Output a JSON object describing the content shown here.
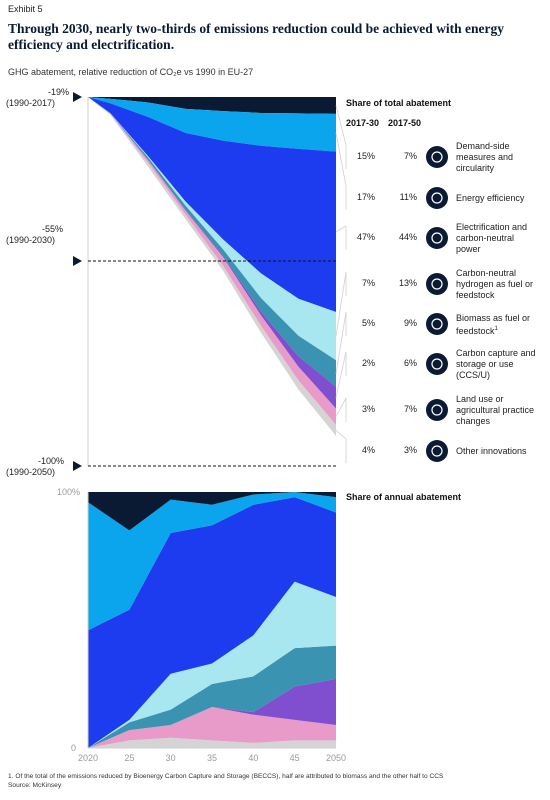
{
  "exhibit": "Exhibit 5",
  "title": "Through 2030, nearly two-thirds of emissions reduction could be achieved with energy efficiency and electrification.",
  "subtitle": "GHG abatement, relative reduction of CO₂e vs 1990 in EU-27",
  "top_labels": {
    "m19": "-19%",
    "m19_period": "(1990-2017)",
    "m55": "-55%",
    "m55_period": "(1990-2030)",
    "m100": "-100%",
    "m100_period": "(1990-2050)"
  },
  "share_total_header": "Share of total abatement",
  "col_2030": "2017-30",
  "col_2050": "2017-50",
  "share_annual_header": "Share of annual abatement",
  "levers": [
    {
      "label": "Demand-side measures and circularity",
      "share_2017_30": "15%",
      "share_2017_50": "7%",
      "icon": "circular-arrow-icon",
      "color": "#0b1a33"
    },
    {
      "label": "Energy efficiency",
      "share_2017_30": "17%",
      "share_2017_50": "11%",
      "icon": "gauge-icon",
      "color": "#0aa5ec"
    },
    {
      "label": "Electrification and carbon-neutral power",
      "share_2017_30": "47%",
      "share_2017_50": "44%",
      "icon": "wind-turbine-icon",
      "color": "#1d3cf0"
    },
    {
      "label": "Carbon-neutral hydrogen as fuel or feedstock",
      "share_2017_30": "7%",
      "share_2017_50": "13%",
      "icon": "hydrogen-icon",
      "color": "#a8e6f0"
    },
    {
      "label": "Biomass as fuel or feedstock",
      "label_sup": "1",
      "share_2017_30": "5%",
      "share_2017_50": "9%",
      "icon": "leaf-icon",
      "color": "#3a93b0"
    },
    {
      "label": "Carbon capture and storage or use (CCS/U)",
      "share_2017_30": "2%",
      "share_2017_50": "6%",
      "icon": "ccs-icon",
      "color": "#7f4fd0"
    },
    {
      "label": "Land use or agricultural practice changes",
      "share_2017_30": "3%",
      "share_2017_50": "7%",
      "icon": "tractor-icon",
      "color": "#e89ac8"
    },
    {
      "label": "Other innovations",
      "share_2017_30": "4%",
      "share_2017_50": "3%",
      "icon": "lightbulb-icon",
      "color": "#d4d4d4"
    }
  ],
  "footnote": "1. Of the total of the emissions reduced by Bioenergy Carbon Capture and Storage (BECCS), half are attributed to biomass and the other half to CCS",
  "source": "Source: McKinsey",
  "chart_data": [
    {
      "type": "area",
      "title": "GHG abatement, relative reduction of CO₂e vs 1990 in EU-27",
      "x": [
        2017,
        2020,
        2025,
        2030,
        2035,
        2040,
        2045,
        2050
      ],
      "ylim": [
        -100,
        -19
      ],
      "reference_lines": [
        -19,
        -55,
        -100
      ],
      "series": [
        {
          "name": "Demand-side measures and circularity",
          "values": [
            0,
            0.4,
            1.2,
            2.6,
            3.1,
            3.5,
            3.6,
            3.7
          ]
        },
        {
          "name": "Energy efficiency",
          "values": [
            0,
            1.0,
            3.2,
            5.3,
            6.5,
            7.2,
            7.8,
            8.3
          ]
        },
        {
          "name": "Electrification and carbon-neutral power",
          "values": [
            0,
            2.2,
            8.6,
            15.1,
            21.7,
            28.0,
            32.9,
            35.2
          ]
        },
        {
          "name": "Carbon-neutral hydrogen as fuel or feedstock",
          "values": [
            0,
            0.05,
            0.3,
            0.9,
            2.2,
            5.4,
            8.1,
            10.6
          ]
        },
        {
          "name": "Biomass as fuel or feedstock",
          "values": [
            0,
            0.05,
            0.5,
            0.9,
            1.4,
            3.0,
            4.5,
            5.8
          ]
        },
        {
          "name": "Carbon capture and storage or use (CCS/U)",
          "values": [
            0,
            0.0,
            0.1,
            0.2,
            0.3,
            0.8,
            2.3,
            4.8
          ]
        },
        {
          "name": "Land use or agricultural practice changes",
          "values": [
            0,
            0.1,
            0.6,
            0.9,
            1.9,
            2.3,
            3.0,
            3.6
          ]
        },
        {
          "name": "Other innovations",
          "values": [
            0,
            0.2,
            0.8,
            1.0,
            1.1,
            1.5,
            2.0,
            2.4
          ]
        }
      ]
    },
    {
      "type": "area",
      "title": "Share of annual abatement",
      "x": [
        2020,
        2025,
        2030,
        35,
        40,
        45,
        2050
      ],
      "xtick_labels": [
        "2020",
        "25",
        "30",
        "35",
        "40",
        "45",
        "2050"
      ],
      "ytick_labels": [
        "0",
        "100%"
      ],
      "ylim": [
        0,
        100
      ],
      "stacking": "percent",
      "series": [
        {
          "name": "Other innovations",
          "values": [
            0,
            3,
            4,
            3,
            2,
            3,
            3
          ]
        },
        {
          "name": "Land use or agricultural practice changes",
          "values": [
            0,
            4,
            5,
            13,
            11,
            8,
            6
          ]
        },
        {
          "name": "Carbon capture and storage or use (CCS/U)",
          "values": [
            0,
            0,
            0,
            0,
            1,
            13,
            18
          ]
        },
        {
          "name": "Biomass as fuel or feedstock",
          "values": [
            0,
            3,
            6,
            9,
            14,
            15,
            13
          ]
        },
        {
          "name": "Carbon-neutral hydrogen as fuel or feedstock",
          "values": [
            0,
            1,
            14,
            8,
            16,
            26,
            19
          ]
        },
        {
          "name": "Electrification and carbon-neutral power",
          "values": [
            46,
            43,
            55,
            54,
            51,
            33,
            33
          ]
        },
        {
          "name": "Energy efficiency",
          "values": [
            50,
            31,
            13,
            8,
            4,
            2,
            6
          ]
        },
        {
          "name": "Demand-side measures and circularity",
          "values": [
            4,
            15,
            3,
            5,
            1,
            0,
            2
          ]
        }
      ]
    }
  ]
}
